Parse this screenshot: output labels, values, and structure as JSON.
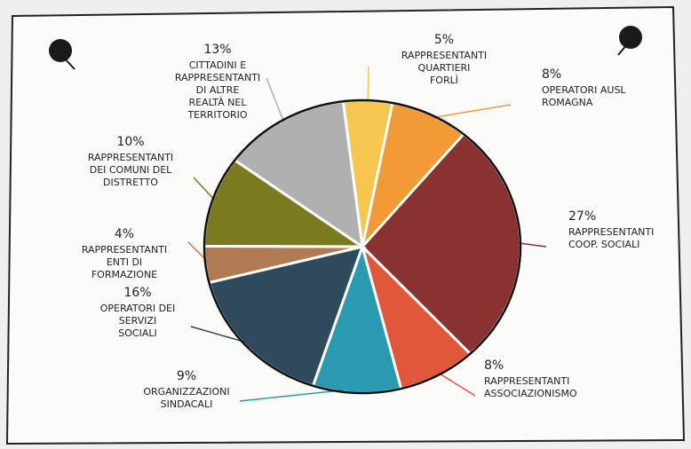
{
  "chart_data": {
    "type": "pie",
    "categories": [
      "RAPPRESENTANTI QUARTIERI FORLÌ",
      "OPERATORI AUSL ROMAGNA",
      "RAPPRESENTANTI COOP. SOCIALI",
      "RAPPRESENTANTI ASSOCIAZIONISMO",
      "ORGANIZZAZIONI SINDACALI",
      "OPERATORI DEI SERVIZI SOCIALI",
      "RAPPRESENTANTI ENTI DI FORMAZIONE",
      "RAPPRESENTANTI DEI COMUNI DEL DISTRETTO",
      "CITTADINI E RAPPRESENTANTI DI ALTRE REALTÀ NEL TERRITORIO"
    ],
    "values": [
      5,
      8,
      27,
      8,
      9,
      16,
      4,
      10,
      13
    ],
    "value_labels": [
      "5%",
      "8%",
      "27%",
      "8%",
      "9%",
      "16%",
      "4%",
      "10%",
      "13%"
    ],
    "colors": [
      "#f6c64e",
      "#f29b36",
      "#8a3232",
      "#e0573a",
      "#2a9ab0",
      "#2e4a5c",
      "#b07a52",
      "#7a7a1e",
      "#b0b0b0"
    ]
  }
}
